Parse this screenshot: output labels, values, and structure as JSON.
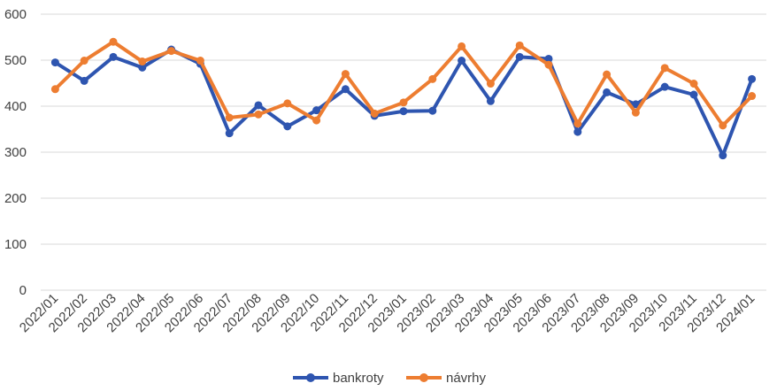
{
  "chart_data": {
    "type": "line",
    "categories": [
      "2022/01",
      "2022/02",
      "2022/03",
      "2022/04",
      "2022/05",
      "2022/06",
      "2022/07",
      "2022/08",
      "2022/09",
      "2022/10",
      "2022/11",
      "2022/12",
      "2023/01",
      "2023/02",
      "2023/03",
      "2023/04",
      "2023/05",
      "2023/06",
      "2023/07",
      "2023/08",
      "2023/09",
      "2023/10",
      "2023/11",
      "2023/12",
      "2024/01"
    ],
    "series": [
      {
        "name": "bankroty",
        "color": "#2E55B0",
        "values": [
          495,
          455,
          507,
          484,
          523,
          492,
          341,
          402,
          356,
          391,
          437,
          379,
          389,
          390,
          499,
          411,
          507,
          503,
          344,
          430,
          404,
          442,
          425,
          293,
          459
        ]
      },
      {
        "name": "návrhy",
        "color": "#ED7D31",
        "values": [
          437,
          499,
          540,
          497,
          520,
          499,
          375,
          382,
          406,
          369,
          470,
          384,
          408,
          459,
          530,
          449,
          532,
          490,
          362,
          469,
          386,
          483,
          449,
          358,
          422
        ]
      }
    ],
    "y_ticks": [
      "0",
      "100",
      "200",
      "300",
      "400",
      "500",
      "600"
    ],
    "ylim": [
      0,
      600
    ],
    "grid": true,
    "legend_position": "bottom-center",
    "title": "",
    "xlabel": "",
    "ylabel": ""
  }
}
